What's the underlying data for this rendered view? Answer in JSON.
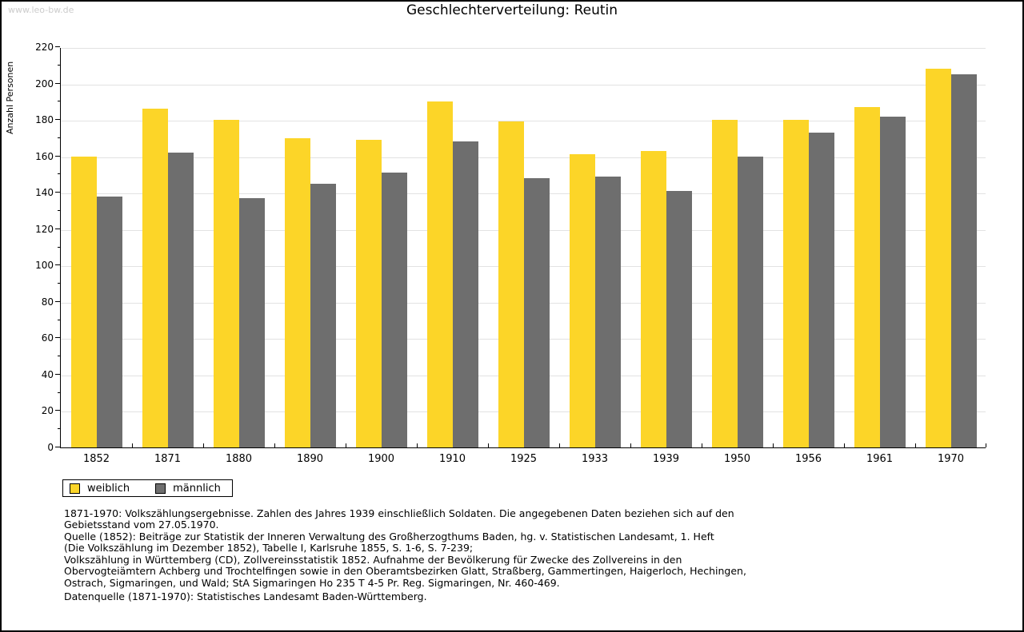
{
  "watermark": "www.leo-bw.de",
  "title": "Geschlechterverteilung: Reutin",
  "chart_data": {
    "type": "bar",
    "title": "Geschlechterverteilung: Reutin",
    "xlabel": "",
    "ylabel": "Anzahl Personen",
    "ylim": [
      0,
      220
    ],
    "ytick_major_step": 20,
    "ytick_minor_step": 10,
    "grid": true,
    "legend_position": "bottom-left",
    "categories": [
      "1852",
      "1871",
      "1880",
      "1890",
      "1900",
      "1910",
      "1925",
      "1933",
      "1939",
      "1950",
      "1956",
      "1961",
      "1970"
    ],
    "series": [
      {
        "name": "weiblich",
        "color": "#FCD528",
        "values": [
          160,
          186,
          180,
          170,
          169,
          190,
          179,
          161,
          163,
          180,
          180,
          187,
          208
        ]
      },
      {
        "name": "männlich",
        "color": "#6E6E6E",
        "values": [
          138,
          162,
          137,
          145,
          151,
          168,
          148,
          149,
          141,
          160,
          173,
          182,
          205
        ]
      }
    ]
  },
  "footnotes": {
    "source_text": "1871-1970: Volkszählungsergebnisse. Zahlen des Jahres 1939 einschließlich Soldaten. Die angegebenen Daten beziehen sich auf den\nGebietsstand vom 27.05.1970.\nQuelle (1852): Beiträge zur Statistik der Inneren Verwaltung des Großherzogthums Baden, hg. v. Statistischen Landesamt, 1. Heft\n(Die Volkszählung im Dezember 1852), Tabelle I, Karlsruhe 1855, S. 1-6, S. 7-239;\nVolkszählung in Württemberg (CD), Zollvereinsstatistik 1852. Aufnahme der Bevölkerung für Zwecke des Zollvereins in den\nObervogteiämtern Achberg und Trochtelfingen sowie in den Oberamtsbezirken Glatt, Straßberg, Gammertingen, Haigerloch, Hechingen,\nOstrach, Sigmaringen, und Wald; StA Sigmaringen Ho 235 T 4-5 Pr. Reg. Sigmaringen, Nr. 460-469.",
    "datasource_text": "Datenquelle (1871-1970): Statistisches Landesamt Baden-Württemberg."
  }
}
